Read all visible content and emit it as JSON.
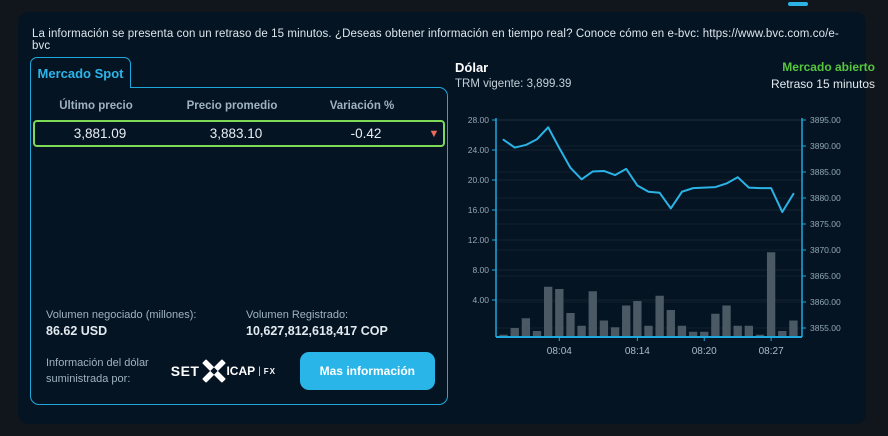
{
  "colors": {
    "accent_cyan": "#1fa8dc",
    "line_cyan": "#2bb3e6",
    "row_green": "#7ed957",
    "status_green": "#56c63f",
    "negative_red": "#ec6a5c",
    "button_blue": "#29b5e8",
    "bar_gray": "#4a5963"
  },
  "info": {
    "message": "La información se presenta con un retraso de 15 minutos. ¿Deseas obtener información en tiempo real? Conoce cómo en e-bvc: ",
    "url": "https://www.bvc.com.co/e-bvc"
  },
  "spot": {
    "tab": "Mercado Spot",
    "table": {
      "headers": [
        "Último precio",
        "Precio promedio",
        "Variación %"
      ],
      "row": {
        "last": "3,881.09",
        "avg": "3,883.10",
        "variation": "-0.42",
        "direction_icon": "▼"
      }
    },
    "volume": {
      "negotiated_label": "Volumen negociado (millones):",
      "negotiated_value": "86.62 USD",
      "registered_label": "Volumen Registrado:",
      "registered_value": "10,627,812,618,417 COP"
    },
    "provider": {
      "line1": "Información del dólar",
      "line2": "suministrada por:",
      "logo_set": "SET",
      "logo_icap": "ICAP",
      "logo_fx": "FX"
    },
    "more_button": "Mas información"
  },
  "chart_header": {
    "title": "Dólar",
    "trm_label": "TRM vigente:",
    "trm_value": "3,899.39",
    "market_status": "Mercado abierto",
    "delay": "Retraso 15 minutos"
  },
  "chart_data": {
    "type": "mixed",
    "grid": true,
    "legend": "none",
    "left_axis": {
      "min": 0,
      "max": 28,
      "step": 4,
      "label_format": 2
    },
    "right_axis": {
      "min": 3855,
      "max": 3895,
      "step": 5,
      "label_format": 2
    },
    "x_tick_labels": [
      {
        "index": 5,
        "label": "08:04"
      },
      {
        "index": 12,
        "label": "08:14"
      },
      {
        "index": 18,
        "label": "08:20"
      },
      {
        "index": 24,
        "label": "08:27"
      }
    ],
    "series": [
      {
        "name": "precio",
        "type": "line",
        "axis": "right",
        "color": "#2bb3e6",
        "values": [
          3891.2,
          3889.7,
          3890.2,
          3891.3,
          3893.6,
          3889.6,
          3885.8,
          3883.6,
          3885.1,
          3885.2,
          3884.4,
          3885.6,
          3882.4,
          3881.2,
          3881.0,
          3878.0,
          3881.2,
          3881.9,
          3882.0,
          3882.1,
          3882.8,
          3884.0,
          3882.0,
          3881.9,
          3881.9,
          3877.3,
          3880.8
        ]
      },
      {
        "name": "volumen",
        "type": "bar",
        "axis": "left",
        "color": "#4a5963",
        "values": [
          0.3,
          1.2,
          2.5,
          0.8,
          6.7,
          6.4,
          3.2,
          1.5,
          6.1,
          2.2,
          1.3,
          4.2,
          4.8,
          1.5,
          5.5,
          3.6,
          1.5,
          0.7,
          0.7,
          3.1,
          4.2,
          1.5,
          1.5,
          0.3,
          11.3,
          0.8,
          2.2
        ]
      }
    ]
  }
}
